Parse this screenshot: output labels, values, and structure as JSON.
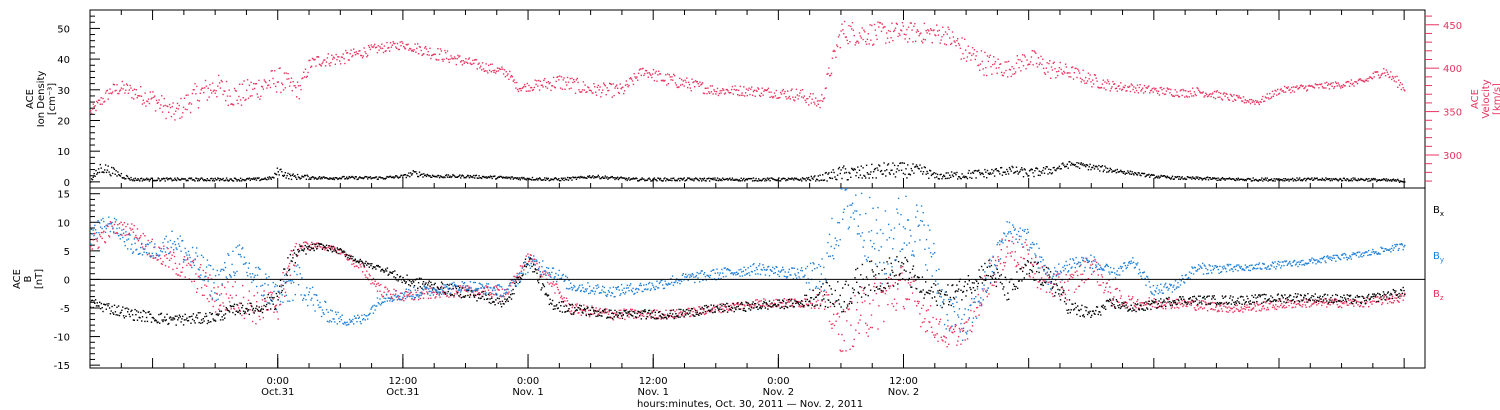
{
  "colors": {
    "black": "#000000",
    "blue": "#1e7fd6",
    "pink": "#e8335f"
  },
  "chart_data": [
    {
      "type": "scatter",
      "panel": "top",
      "ylabel_left": [
        "ACE",
        "Ion Density",
        "[cm⁻³]"
      ],
      "ylabel_right": [
        "ACE",
        "Velocity",
        "[km/s]"
      ],
      "ylim_left": [
        -2,
        56
      ],
      "ylim_right": [
        262,
        467
      ],
      "left_ticks": [
        "0",
        "10",
        "20",
        "30",
        "40",
        "50"
      ],
      "right_ticks": [
        "300",
        "350",
        "400",
        "450"
      ],
      "series": [
        {
          "axis": "right",
          "color": "#e8335f",
          "x": [
            0,
            2,
            3,
            6,
            8,
            10,
            12,
            14,
            16,
            18,
            20,
            21,
            22,
            24,
            27,
            30,
            33,
            36,
            40,
            41,
            45,
            48,
            51,
            53,
            55,
            56,
            60,
            62,
            64,
            66,
            68,
            70,
            72,
            74,
            78,
            82,
            84,
            86,
            88,
            90,
            92,
            94,
            96,
            98,
            100,
            102,
            104,
            105,
            106,
            108,
            110,
            112,
            114,
            116,
            118,
            120,
            122,
            124,
            126
          ],
          "y": [
            350,
            375,
            378,
            365,
            348,
            368,
            380,
            368,
            378,
            388,
            375,
            405,
            410,
            412,
            422,
            428,
            418,
            408,
            395,
            378,
            385,
            376,
            375,
            398,
            388,
            386,
            375,
            375,
            374,
            372,
            370,
            360,
            443,
            440,
            442,
            440,
            418,
            405,
            400,
            412,
            400,
            396,
            387,
            380,
            378,
            375,
            373,
            372,
            374,
            370,
            365,
            362,
            375,
            378,
            380,
            382,
            385,
            398,
            378
          ],
          "spread": [
            6,
            8,
            8,
            12,
            12,
            15,
            15,
            15,
            15,
            15,
            10,
            8,
            8,
            8,
            6,
            5,
            8,
            6,
            6,
            4,
            10,
            8,
            8,
            6,
            8,
            8,
            6,
            6,
            6,
            6,
            8,
            8,
            14,
            14,
            12,
            12,
            16,
            14,
            10,
            12,
            12,
            8,
            8,
            6,
            5,
            5,
            5,
            5,
            5,
            5,
            4,
            4,
            4,
            4,
            4,
            4,
            4,
            6,
            6
          ]
        },
        {
          "axis": "left",
          "color": "#000000",
          "x": [
            0,
            1,
            4,
            8,
            12,
            16,
            17.5,
            18,
            19,
            22,
            26,
            28,
            30,
            31,
            33,
            36,
            40,
            45,
            47,
            48,
            52,
            56,
            60,
            64,
            68,
            70,
            72,
            74,
            76,
            78,
            80,
            81,
            84,
            86,
            88,
            90,
            92,
            94,
            96,
            98,
            100,
            102,
            104,
            110,
            116,
            122,
            126
          ],
          "y": [
            0.5,
            5,
            1,
            1,
            1,
            1,
            1.5,
            4,
            2,
            1.5,
            1.5,
            1.5,
            2,
            3,
            2,
            2,
            1.5,
            1,
            1.5,
            2,
            1,
            1,
            1,
            1,
            1,
            1.5,
            3,
            3,
            4,
            4,
            3.5,
            2,
            2.5,
            3,
            4,
            3,
            4,
            6,
            5,
            4,
            3,
            2,
            1.5,
            1,
            1,
            1,
            0.5
          ],
          "spread": [
            0.5,
            2,
            0.5,
            0.5,
            0.5,
            0.5,
            0.5,
            1.5,
            1,
            0.5,
            0.5,
            0.5,
            0.5,
            1,
            0.5,
            0.5,
            0.5,
            0.5,
            0.5,
            0.5,
            0.5,
            0.5,
            0.5,
            0.5,
            0.5,
            1,
            2.5,
            2.5,
            2.5,
            2.5,
            2,
            1,
            1.5,
            1.5,
            1.5,
            1.5,
            1.5,
            1,
            1,
            1,
            0.5,
            0.5,
            0.5,
            0.5,
            0.5,
            0.5,
            0.5
          ]
        }
      ]
    },
    {
      "type": "scatter",
      "panel": "bottom",
      "ylabel_left": [
        "ACE",
        "B",
        "[nT]"
      ],
      "ylim": [
        -15.5,
        16
      ],
      "left_ticks": [
        "-15",
        "-10",
        "-5",
        "0",
        "5",
        "10",
        "15"
      ],
      "legend": [
        {
          "label": "Bx",
          "main": "B",
          "sub": "x",
          "color": "#000000"
        },
        {
          "label": "By",
          "main": "B",
          "sub": "y",
          "color": "#1e7fd6"
        },
        {
          "label": "Bz",
          "main": "B",
          "sub": "z",
          "color": "#e8335f"
        }
      ],
      "series": [
        {
          "name": "Bx",
          "color": "#000000",
          "x": [
            0,
            4,
            8,
            12,
            14,
            16,
            18,
            19,
            20,
            22,
            24,
            26,
            28,
            30,
            34,
            38,
            40,
            41,
            42,
            43,
            44,
            46,
            50,
            56,
            60,
            64,
            68,
            70,
            72,
            74,
            76,
            78,
            80,
            82,
            84,
            86,
            88,
            90,
            92,
            94,
            96,
            98,
            100,
            104,
            110,
            116,
            122,
            126
          ],
          "y": [
            -4,
            -6,
            -7,
            -6.5,
            -5,
            -5,
            -3,
            3,
            5,
            6,
            5,
            3,
            2,
            0,
            -1.5,
            -3,
            -4,
            0,
            4,
            0,
            -4,
            -5,
            -6,
            -6,
            -5,
            -4.5,
            -4,
            -2.5,
            -3,
            0,
            1,
            2,
            -2,
            -3,
            -1,
            2,
            -2,
            2,
            0,
            -5,
            -6,
            -4,
            -5,
            -3.5,
            -3.5,
            -3,
            -3.5,
            -2
          ],
          "spread": [
            1,
            1,
            1,
            1,
            1,
            1,
            2,
            2,
            1,
            0.5,
            0.5,
            0.5,
            0.5,
            1,
            1,
            1,
            1,
            1,
            1,
            1,
            1,
            1,
            0.8,
            0.8,
            0.8,
            0.8,
            0.8,
            2,
            3,
            3,
            3,
            2.5,
            2,
            2,
            2,
            2,
            2,
            2,
            2,
            1.5,
            1,
            1,
            0.8,
            0.8,
            0.8,
            0.8,
            0.8,
            0.8
          ]
        },
        {
          "name": "By",
          "color": "#1e7fd6",
          "x": [
            0,
            2,
            4,
            6,
            8,
            10,
            12,
            14,
            16,
            18,
            20,
            22,
            24,
            26,
            28,
            32,
            36,
            40,
            42,
            44,
            46,
            50,
            54,
            56,
            60,
            64,
            68,
            70,
            72,
            73,
            76,
            78,
            80,
            82,
            84,
            86,
            88,
            90,
            92,
            94,
            96,
            98,
            100,
            102,
            104,
            106,
            110,
            116,
            122,
            126
          ],
          "y": [
            8,
            10,
            6,
            5,
            7,
            3,
            -1,
            4,
            0,
            -3,
            0,
            -5,
            -7,
            -7,
            -3,
            -2,
            -1,
            -2,
            3,
            2,
            -1,
            -2,
            -1,
            0,
            1,
            2,
            1,
            0,
            12,
            13,
            5,
            10,
            8,
            -5,
            -8,
            0,
            9,
            7,
            0,
            3,
            3,
            1,
            3,
            -2,
            -1,
            2,
            2,
            3,
            4.5,
            6
          ],
          "spread": [
            2,
            1.5,
            1.5,
            1.5,
            2,
            3,
            3,
            3,
            3,
            3,
            3,
            2,
            1,
            1,
            1,
            1,
            1,
            1,
            1.5,
            1.5,
            1,
            1,
            1,
            1,
            1,
            1,
            1,
            4,
            5,
            5,
            7,
            6,
            5,
            4,
            3,
            3,
            2,
            2,
            2,
            1.5,
            1.5,
            1,
            1,
            1,
            1,
            1,
            0.7,
            0.6,
            0.6,
            0.6
          ]
        },
        {
          "name": "Bz",
          "color": "#e8335f",
          "x": [
            0,
            2,
            4,
            6,
            8,
            10,
            12,
            14,
            16,
            18,
            19,
            20,
            22,
            24,
            26,
            28,
            30,
            34,
            38,
            40,
            42,
            44,
            46,
            50,
            56,
            60,
            64,
            68,
            70,
            72,
            74,
            76,
            78,
            80,
            82,
            84,
            86,
            88,
            90,
            92,
            94,
            96,
            98,
            100,
            104,
            110,
            116,
            122,
            126
          ],
          "y": [
            6,
            9,
            9,
            5,
            3,
            1,
            -3,
            -3,
            -5,
            -4,
            2,
            6,
            6,
            5,
            2,
            -2,
            -3,
            -2,
            -2,
            -2,
            4,
            0,
            -5,
            -6,
            -6,
            -5,
            -4,
            -4,
            -3,
            -9,
            -6,
            -3,
            -1,
            -6,
            -10,
            -9,
            0,
            6,
            3,
            -1,
            -1,
            3,
            -3,
            -4,
            -4,
            -5,
            -4,
            -4,
            -3
          ],
          "spread": [
            2,
            1.5,
            1,
            2,
            2,
            3,
            3,
            3,
            3,
            3,
            3,
            1,
            0.5,
            0.5,
            1,
            1,
            1,
            1,
            1,
            1,
            1,
            1,
            1,
            1,
            0.8,
            0.8,
            0.8,
            0.8,
            2,
            4,
            5,
            5,
            4,
            3,
            2,
            2,
            3,
            3,
            3,
            2.5,
            2.5,
            2,
            2,
            1,
            1,
            0.8,
            0.8,
            0.8,
            0.8
          ]
        }
      ]
    }
  ],
  "xaxis": {
    "range_hours": [
      0,
      128
    ],
    "time_labels": [
      {
        "x": 18,
        "time": "0:00",
        "date": "Oct.31"
      },
      {
        "x": 30,
        "time": "12:00",
        "date": "Oct.31"
      },
      {
        "x": 42,
        "time": "0:00",
        "date": "Nov. 1"
      },
      {
        "x": 54,
        "time": "12:00",
        "date": "Nov. 1"
      },
      {
        "x": 66,
        "time": "0:00",
        "date": "Nov. 2"
      },
      {
        "x": 78,
        "time": "12:00",
        "date": "Nov. 2"
      }
    ],
    "xlabel": "hours:minutes, Oct. 30, 2011 — Nov.  2, 2011"
  }
}
